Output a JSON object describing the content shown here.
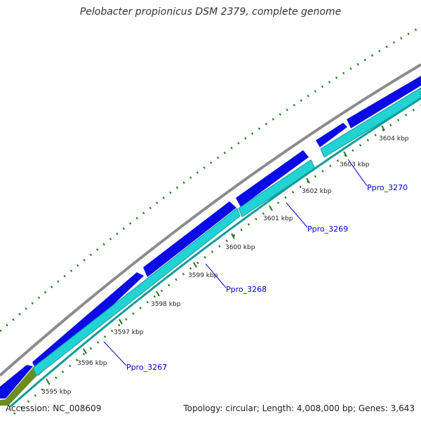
{
  "title": "Pelobacter propionicus DSM 2379, complete genome",
  "footer": {
    "accession": "Accession: NC_008609",
    "summary": "Topology: circular; Length: 4,008,000 bp; Genes: 3,643"
  },
  "colors": {
    "backbone": "#8c8c8c",
    "forward_gene": "#0a0ae6",
    "reverse_gene": "#22d3d3",
    "reverse_gene_border": "#0e9a9a",
    "other_gene": "#6b8e23",
    "tick": "#1f7a1f",
    "label": "#0000cc"
  },
  "ticks": [
    "3595 kbp",
    "3596 kbp",
    "3597 kbp",
    "3598 kbp",
    "3599 kbp",
    "3600 kbp",
    "3601 kbp",
    "3602 kbp",
    "3603 kbp",
    "3604 kbp"
  ],
  "genes": [
    "Ppro_3267",
    "Ppro_3268",
    "Ppro_3269",
    "Ppro_3270"
  ]
}
